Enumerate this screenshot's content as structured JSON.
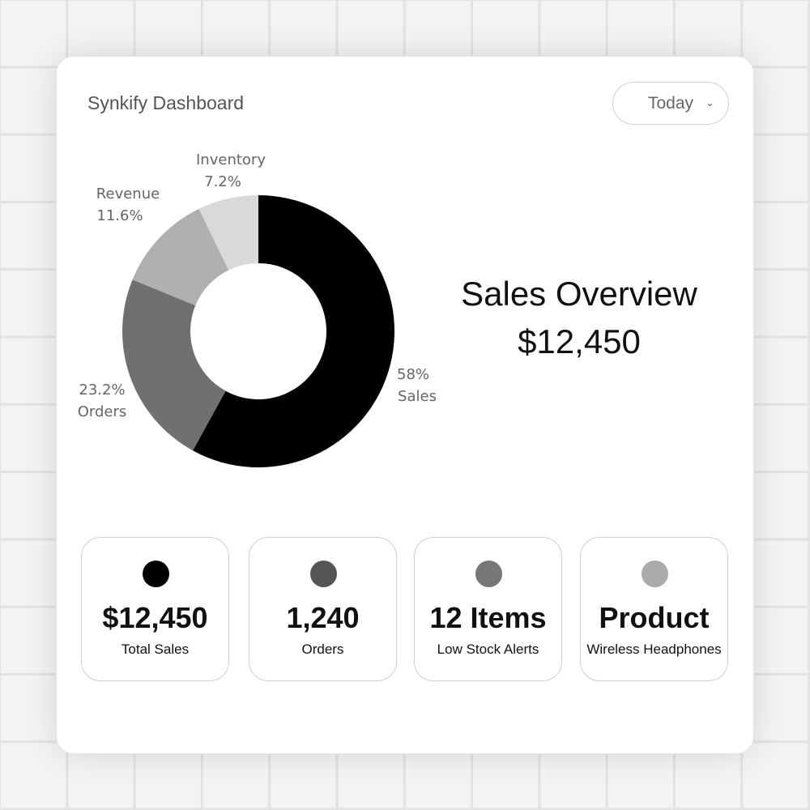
{
  "header": {
    "title": "Synkify Dashboard",
    "period_dropdown": {
      "selected": "Today",
      "icon": "chevron-down-icon"
    }
  },
  "overview": {
    "title": "Sales Overview",
    "value": "$12,450"
  },
  "chart_data": {
    "type": "pie",
    "donut": true,
    "categories": [
      "Sales",
      "Orders",
      "Revenue",
      "Inventory"
    ],
    "values": [
      58,
      23.2,
      11.6,
      7.2
    ],
    "value_labels": [
      "58%",
      "23.2%",
      "11.6%",
      "7.2%"
    ],
    "colors": [
      "#000000",
      "#707070",
      "#b0b0b0",
      "#d9d9d9"
    ],
    "start": "top",
    "direction": "clockwise"
  },
  "stats": [
    {
      "value": "$12,450",
      "label": "Total Sales",
      "color": "#000000"
    },
    {
      "value": "1,240",
      "label": "Orders",
      "color": "#555555"
    },
    {
      "value": "12 Items",
      "label": "Low Stock Alerts",
      "color": "#777777"
    },
    {
      "value": "Product",
      "label": "Wireless Headphones",
      "color": "#aaaaaa"
    }
  ]
}
